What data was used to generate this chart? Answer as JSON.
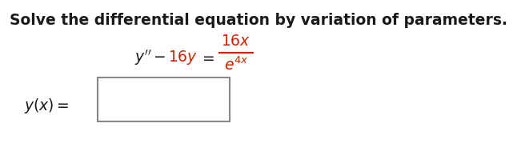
{
  "title": "Solve the differential equation by variation of parameters.",
  "title_color": "#1a1a1a",
  "title_fontsize": 13.5,
  "background_color": "#ffffff",
  "red_color": "#cc2200",
  "black_color": "#1a1a1a",
  "eq_fontsize": 13.5,
  "yx_fontsize": 13.5,
  "font_family": "DejaVu Sans"
}
